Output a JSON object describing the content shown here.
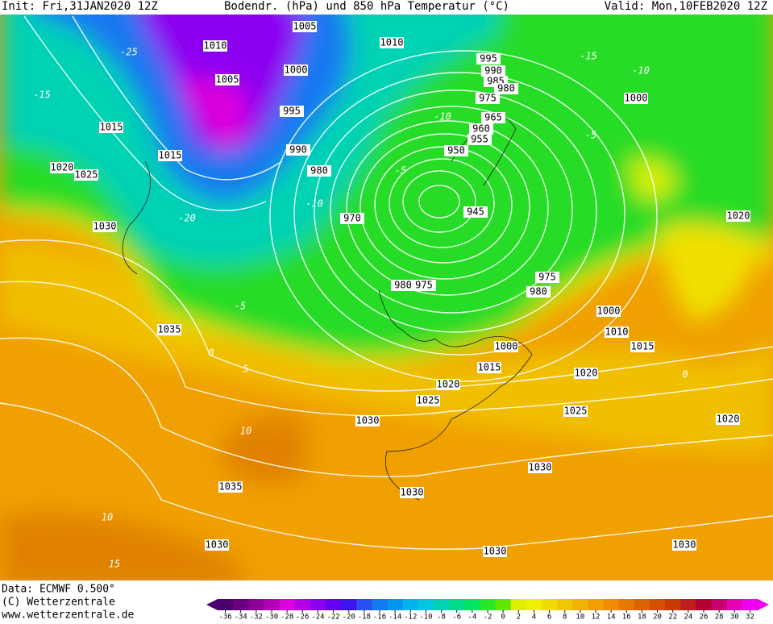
{
  "header": {
    "init": "Init: Fri,31JAN2020 12Z",
    "title": "Bodendr. (hPa) und 850 hPa Temperatur (°C)",
    "valid": "Valid: Mon,10FEB2020 12Z"
  },
  "footer": {
    "data": "Data: ECMWF  0.500°",
    "copyright": "(C) Wetterzentrale",
    "url": "www.wetterzentrale.de"
  },
  "isobar_labels": [
    "1005",
    "1010",
    "1010",
    "1005",
    "1000",
    "995",
    "990",
    "985",
    "980",
    "975",
    "1000",
    "1015",
    "995",
    "965",
    "960",
    "955",
    "950",
    "990",
    "980",
    "1015",
    "1020",
    "1025",
    "970",
    "945",
    "1020",
    "1030",
    "980",
    "975",
    "975",
    "980",
    "1000",
    "1010",
    "1035",
    "1000",
    "1015",
    "1015",
    "1020",
    "1020",
    "1025",
    "1025",
    "1030",
    "1020",
    "1035",
    "1030",
    "1030",
    "1030",
    "1030",
    "1030"
  ],
  "temp_labels": [
    "-25",
    "-15",
    "-20",
    "-10",
    "-5",
    "-15",
    "-10",
    "-5",
    "0",
    "5",
    "10",
    "10",
    "15",
    "-10",
    "-5",
    "0"
  ],
  "colorbar": {
    "ticks": [
      -36,
      -34,
      -32,
      -30,
      -28,
      -26,
      -24,
      -22,
      -20,
      -18,
      -16,
      -14,
      -12,
      -10,
      -8,
      -6,
      -4,
      -2,
      0,
      2,
      4,
      6,
      8,
      10,
      12,
      14,
      16,
      18,
      20,
      22,
      24,
      26,
      28,
      30,
      32
    ],
    "colors": [
      "#4b006e",
      "#6a0080",
      "#8c0096",
      "#b400b4",
      "#dc00dc",
      "#b400e6",
      "#8c00f0",
      "#6400f0",
      "#3c14f0",
      "#2850f0",
      "#1478f0",
      "#0096f0",
      "#00b4f0",
      "#00c8dc",
      "#00d2b4",
      "#00dc8c",
      "#00e664",
      "#28e628",
      "#64e600",
      "#dcf000",
      "#f0f000",
      "#f0dc00",
      "#f0c800",
      "#f0b400",
      "#f0a000",
      "#f08c00",
      "#e67800",
      "#dc6400",
      "#d25000",
      "#c83c00",
      "#be1e1e",
      "#b40032",
      "#c8006e",
      "#e600b4",
      "#f000f0"
    ]
  }
}
